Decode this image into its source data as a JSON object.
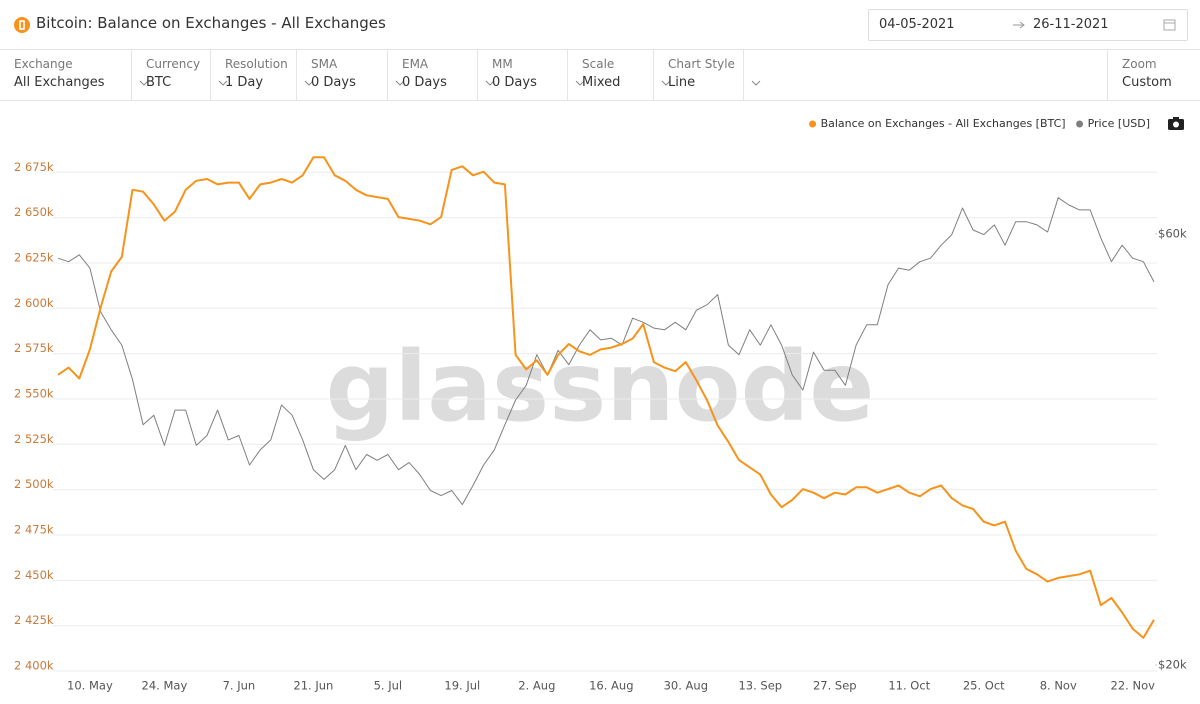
{
  "chart_data": {
    "type": "line",
    "title": "Bitcoin: Balance on Exchanges - All Exchanges",
    "watermark": "glassnode",
    "categories": [
      null,
      null,
      null,
      "10. May",
      null,
      null,
      null,
      null,
      null,
      null,
      "24. May",
      null,
      null,
      null,
      null,
      null,
      null,
      "7. Jun",
      null,
      null,
      null,
      null,
      null,
      null,
      "21. Jun",
      null,
      null,
      null,
      null,
      null,
      null,
      "5. Jul",
      null,
      null,
      null,
      null,
      null,
      null,
      "19. Jul",
      null,
      null,
      null,
      null,
      null,
      null,
      "2. Aug",
      null,
      null,
      null,
      null,
      null,
      null,
      "16. Aug",
      null,
      null,
      null,
      null,
      null,
      null,
      "30. Aug",
      null,
      null,
      null,
      null,
      null,
      null,
      "13. Sep",
      null,
      null,
      null,
      null,
      null,
      null,
      "27. Sep",
      null,
      null,
      null,
      null,
      null,
      null,
      "11. Oct",
      null,
      null,
      null,
      null,
      null,
      null,
      "25. Oct",
      null,
      null,
      null,
      null,
      null,
      null,
      "8. Nov",
      null,
      null,
      null,
      null,
      null,
      null,
      "22. Nov",
      null,
      null
    ],
    "series": [
      {
        "name": "Balance on Exchanges - All Exchanges [BTC]",
        "color": "#f7931a",
        "values": [
          2560000,
          2564000,
          2558000,
          2574000,
          2597000,
          2617000,
          2625000,
          2662000,
          2661000,
          2654000,
          2645000,
          2650000,
          2662000,
          2667000,
          2668000,
          2665000,
          2666000,
          2666000,
          2657000,
          2665000,
          2666000,
          2668000,
          2666000,
          2670000,
          2680000,
          2680000,
          2670000,
          2667000,
          2662000,
          2659000,
          2658000,
          2657000,
          2647000,
          2646000,
          2645000,
          2643000,
          2647000,
          2673000,
          2675000,
          2670000,
          2672000,
          2666000,
          2665000,
          2571000,
          2563000,
          2568000,
          2560000,
          2571000,
          2577000,
          2573000,
          2571000,
          2574000,
          2575000,
          2577000,
          2580000,
          2588000,
          2567000,
          2564000,
          2562000,
          2567000,
          2557000,
          2546000,
          2532000,
          2523000,
          2513000,
          2509000,
          2505000,
          2494000,
          2487000,
          2491000,
          2497000,
          2495000,
          2492000,
          2495000,
          2494000,
          2498000,
          2498000,
          2495000,
          2497000,
          2499000,
          2495000,
          2493000,
          2497000,
          2499000,
          2492000,
          2488000,
          2486000,
          2479000,
          2477000,
          2479000,
          2463000,
          2453000,
          2450000,
          2446000,
          2448000,
          2449000,
          2450000,
          2452000,
          2433000,
          2437000,
          2429000,
          2420000,
          2415000,
          2425000
        ]
      },
      {
        "name": "Price [USD]",
        "color": "#7f7f7f",
        "axis": "y2",
        "values": [
          56400,
          55900,
          56900,
          55000,
          49200,
          47000,
          45200,
          41400,
          36900,
          37800,
          35000,
          38300,
          38300,
          35000,
          35900,
          38300,
          35500,
          35900,
          33300,
          34600,
          35500,
          38800,
          37800,
          35500,
          32900,
          32100,
          32900,
          35000,
          32900,
          34200,
          33700,
          34200,
          32900,
          33500,
          32500,
          31200,
          30800,
          31200,
          30100,
          31600,
          33300,
          34600,
          36900,
          39300,
          40800,
          44100,
          41900,
          44600,
          43000,
          45200,
          47000,
          45800,
          46000,
          45200,
          48400,
          47900,
          47200,
          47000,
          47900,
          47000,
          49400,
          50100,
          51400,
          45200,
          44100,
          47000,
          45200,
          47600,
          45200,
          41900,
          40300,
          44400,
          42400,
          42400,
          40800,
          45200,
          47600,
          47600,
          52700,
          55000,
          54700,
          55900,
          56400,
          58300,
          59900,
          64100,
          60600,
          59900,
          61400,
          58300,
          61900,
          61900,
          61400,
          60300,
          65800,
          64600,
          63800,
          63800,
          59400,
          55900,
          58300,
          56400,
          55900,
          53100
        ]
      }
    ],
    "ylim": [
      2400000,
      2695000
    ],
    "yticks": [
      {
        "value": 2400000,
        "label": "2 400k"
      },
      {
        "value": 2425000,
        "label": "2 425k"
      },
      {
        "value": 2450000,
        "label": "2 450k"
      },
      {
        "value": 2475000,
        "label": "2 475k"
      },
      {
        "value": 2500000,
        "label": "2 500k"
      },
      {
        "value": 2525000,
        "label": "2 525k"
      },
      {
        "value": 2550000,
        "label": "2 550k"
      },
      {
        "value": 2575000,
        "label": "2 575k"
      },
      {
        "value": 2600000,
        "label": "2 600k"
      },
      {
        "value": 2625000,
        "label": "2 625k"
      },
      {
        "value": 2650000,
        "label": "2 650k"
      },
      {
        "value": 2675000,
        "label": "2 675k"
      }
    ],
    "y2lim": [
      20000,
      78200
    ],
    "y2log": true,
    "y2ticks": [
      {
        "value": 60000,
        "label": "$60k"
      },
      {
        "value": 20000,
        "label": "$20k"
      }
    ],
    "grid": true,
    "legend": "top-right"
  },
  "date_range": {
    "start": "04-05-2021",
    "end": "26-11-2021"
  },
  "controls": [
    {
      "label": "Exchange",
      "value": "All Exchanges"
    },
    {
      "label": "Currency",
      "value": "BTC"
    },
    {
      "label": "Resolution",
      "value": "1 Day"
    },
    {
      "label": "SMA",
      "value": "0 Days"
    },
    {
      "label": "EMA",
      "value": "0 Days"
    },
    {
      "label": "MM",
      "value": "0 Days"
    },
    {
      "label": "Scale",
      "value": "Mixed"
    },
    {
      "label": "Chart Style",
      "value": "Line"
    }
  ],
  "zoom": {
    "label": "Zoom",
    "value": "Custom"
  }
}
